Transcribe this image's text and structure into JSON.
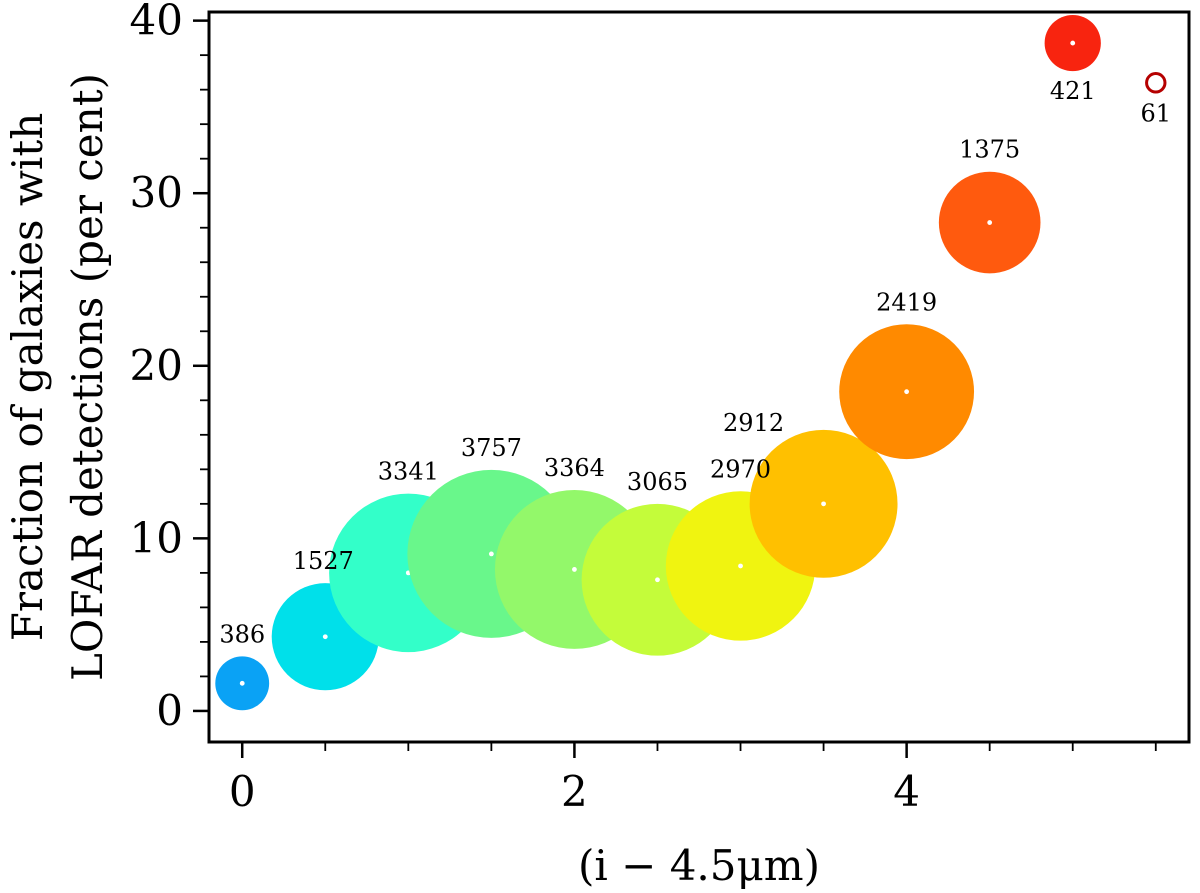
{
  "chart_data": {
    "type": "scatter",
    "title": "",
    "xlabel": "(i − 4.5μm)",
    "ylabel_lines": [
      "Fraction of galaxies with",
      "LOFAR detections (per cent)"
    ],
    "xlim": [
      -0.2,
      5.7
    ],
    "ylim": [
      -1.8,
      40.5
    ],
    "x_ticks": [
      0,
      2,
      4
    ],
    "x_tick_labels": [
      "0",
      "2",
      "4"
    ],
    "x_minor_ticks": [
      0.5,
      1,
      1.5,
      2.5,
      3,
      3.5,
      4.5,
      5,
      5.5
    ],
    "y_ticks": [
      0,
      10,
      20,
      30,
      40
    ],
    "y_tick_labels": [
      "0",
      "10",
      "20",
      "30",
      "40"
    ],
    "y_minor_step": 2,
    "grid": false,
    "legend": "none",
    "points": [
      {
        "x": 0.0,
        "y": 1.6,
        "n": 386,
        "label": "386",
        "color": "#0aa2f5",
        "filled": true
      },
      {
        "x": 0.5,
        "y": 4.3,
        "n": 1527,
        "label": "1527",
        "color": "#00e0ea",
        "filled": true
      },
      {
        "x": 1.0,
        "y": 8.0,
        "n": 3341,
        "label": "3341",
        "color": "#33ffc9",
        "filled": true
      },
      {
        "x": 1.5,
        "y": 9.1,
        "n": 3757,
        "label": "3757",
        "color": "#69f78b",
        "filled": true
      },
      {
        "x": 2.0,
        "y": 8.2,
        "n": 3364,
        "label": "3364",
        "color": "#93f86a",
        "filled": true
      },
      {
        "x": 2.5,
        "y": 7.6,
        "n": 3065,
        "label": "3065",
        "color": "#c4fc3a",
        "filled": true
      },
      {
        "x": 3.0,
        "y": 8.4,
        "n": 2970,
        "label": "2970",
        "color": "#f0f410",
        "filled": true
      },
      {
        "x": 3.5,
        "y": 12.0,
        "n": 2912,
        "label": "2912",
        "color": "#ffc000",
        "filled": true
      },
      {
        "x": 4.0,
        "y": 18.5,
        "n": 2419,
        "label": "2419",
        "color": "#ff8a00",
        "filled": true
      },
      {
        "x": 4.5,
        "y": 28.3,
        "n": 1375,
        "label": "1375",
        "color": "#ff5a0e",
        "filled": true
      },
      {
        "x": 5.0,
        "y": 38.7,
        "n": 421,
        "label": "421",
        "color": "#f8240f",
        "filled": true
      },
      {
        "x": 5.5,
        "y": 36.4,
        "n": 61,
        "label": "61",
        "color": "#b50000",
        "filled": false
      }
    ]
  }
}
